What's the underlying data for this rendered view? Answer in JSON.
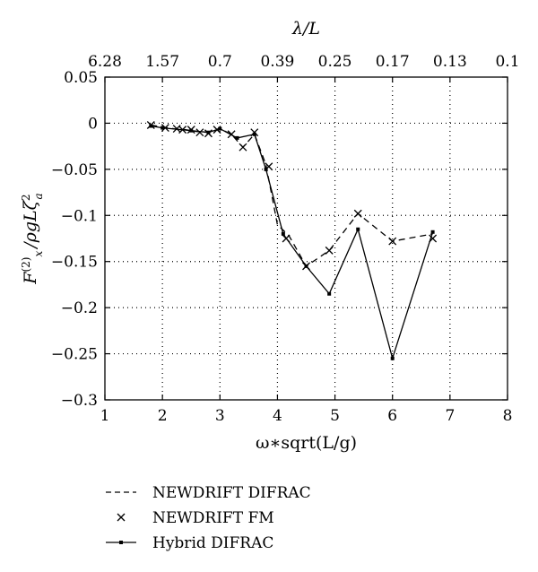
{
  "chart_data": {
    "type": "line",
    "xlabel": "ω∗sqrt(L/g)",
    "ylabel_main": "F",
    "ylabel_sup": "(2)",
    "ylabel_sub": "x",
    "ylabel_mid": "/ρgLζ",
    "ylabel_sup2": "2",
    "ylabel_sub2": "a",
    "top_xlabel": "λ/L",
    "xlim": [
      1,
      8
    ],
    "ylim": [
      -0.3,
      0.05
    ],
    "xticks": [
      1,
      2,
      3,
      4,
      5,
      6,
      7,
      8
    ],
    "xtick_labels": [
      "1",
      "2",
      "3",
      "4",
      "5",
      "6",
      "7",
      "8"
    ],
    "yticks": [
      0.05,
      0,
      -0.05,
      -0.1,
      -0.15,
      -0.2,
      -0.25,
      -0.3
    ],
    "ytick_labels": [
      "0.05",
      "0",
      "−0.05",
      "−0.1",
      "−0.15",
      "−0.2",
      "−0.25",
      "−0.3"
    ],
    "top_ticks": [
      1,
      2,
      3,
      4,
      5,
      6,
      7,
      8
    ],
    "top_tick_labels": [
      "6.28",
      "1.57",
      "0.7",
      "0.39",
      "0.25",
      "0.17",
      "0.13",
      "0.1"
    ],
    "grid": true,
    "legend_position": "bottom-left",
    "series": [
      {
        "name": "NEWDRIFT DIFRAC",
        "style": "dashed",
        "x": [
          1.8,
          2.0,
          2.2,
          2.4,
          2.6,
          2.8,
          3.0,
          3.2,
          3.4,
          3.6,
          3.8,
          4.0,
          4.2,
          4.5,
          4.9,
          5.4,
          6.0,
          6.7
        ],
        "y": [
          -0.002,
          -0.004,
          -0.006,
          -0.007,
          -0.009,
          -0.01,
          -0.006,
          -0.012,
          -0.026,
          -0.012,
          -0.045,
          -0.11,
          -0.122,
          -0.155,
          -0.138,
          -0.098,
          -0.128,
          -0.12
        ]
      },
      {
        "name": "NEWDRIFT FM",
        "style": "markers-x",
        "x": [
          1.8,
          2.05,
          2.25,
          2.35,
          2.5,
          2.65,
          2.8,
          2.95,
          3.2,
          3.4,
          3.6,
          3.85,
          4.15,
          4.5,
          4.9,
          5.4,
          6.0,
          6.7
        ],
        "y": [
          -0.002,
          -0.005,
          -0.006,
          -0.007,
          -0.007,
          -0.01,
          -0.011,
          -0.007,
          -0.012,
          -0.026,
          -0.01,
          -0.047,
          -0.125,
          -0.155,
          -0.138,
          -0.098,
          -0.128,
          -0.125
        ]
      },
      {
        "name": "Hybrid DIFRAC",
        "style": "solid-markers",
        "x": [
          1.8,
          2.0,
          2.5,
          2.8,
          3.0,
          3.3,
          3.6,
          3.8,
          4.1,
          4.5,
          4.9,
          5.4,
          6.0,
          6.7
        ],
        "y": [
          -0.003,
          -0.005,
          -0.008,
          -0.01,
          -0.006,
          -0.016,
          -0.012,
          -0.05,
          -0.12,
          -0.155,
          -0.185,
          -0.115,
          -0.255,
          -0.118
        ]
      }
    ]
  }
}
